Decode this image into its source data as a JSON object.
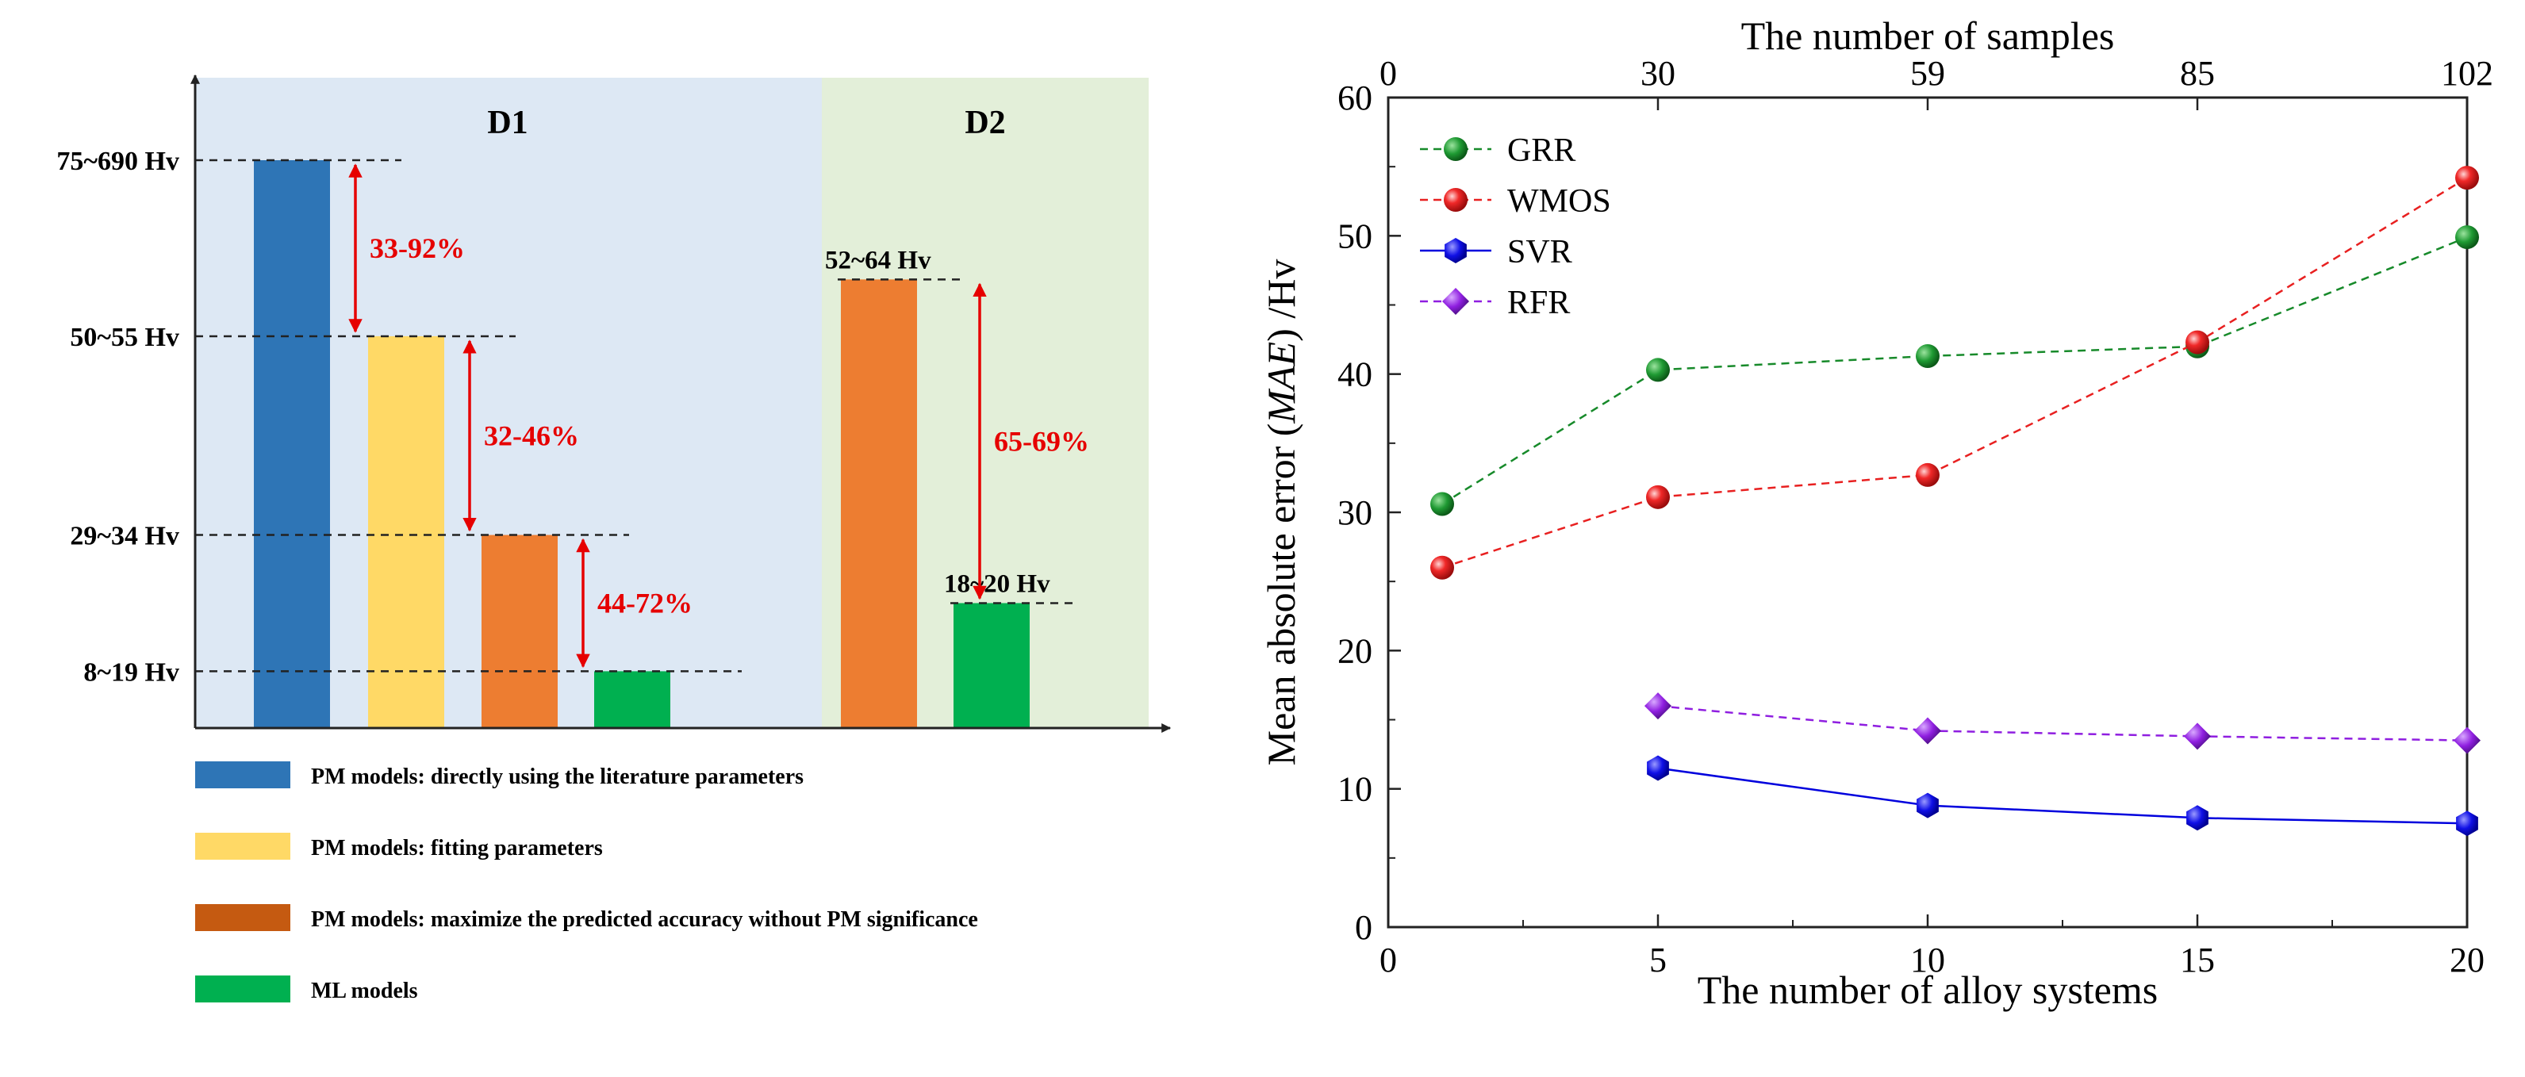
{
  "chart_data": [
    {
      "type": "bar",
      "title": "",
      "domains": [
        {
          "label": "D1",
          "color": "#dde8f4"
        },
        {
          "label": "D2",
          "color": "#e3efd9"
        }
      ],
      "categories": [
        "PM models: directly using the literature parameters",
        "PM models: fitting parameters",
        "PM models: maximize the predicted accuracy without PM significance",
        "ML models"
      ],
      "legend": [
        {
          "label": "PM models: directly using the literature parameters",
          "color": "#2e75b6"
        },
        {
          "label": "PM models: fitting parameters",
          "color": "#ffd966"
        },
        {
          "label": "PM models: maximize the predicted accuracy without PM significance",
          "color": "#c55a11"
        },
        {
          "label": "ML models",
          "color": "#00b050"
        }
      ],
      "bars": [
        {
          "domain": "D1",
          "category": 0,
          "value": 100,
          "color": "#2e75b6"
        },
        {
          "domain": "D1",
          "category": 1,
          "value": 69,
          "color": "#ffd966"
        },
        {
          "domain": "D1",
          "category": 2,
          "value": 34,
          "color": "#ed7d31"
        },
        {
          "domain": "D1",
          "category": 3,
          "value": 10,
          "color": "#00b050"
        },
        {
          "domain": "D2",
          "category": 2,
          "value": 79,
          "color": "#ed7d31"
        },
        {
          "domain": "D2",
          "category": 3,
          "value": 22,
          "color": "#00b050"
        }
      ],
      "level_labels": [
        {
          "domain": "D1",
          "text": "75~690 Hv",
          "value": 100
        },
        {
          "domain": "D1",
          "text": "50~55 Hv",
          "value": 69
        },
        {
          "domain": "D1",
          "text": "29~34 Hv",
          "value": 34
        },
        {
          "domain": "D1",
          "text": "8~19 Hv",
          "value": 10
        },
        {
          "domain": "D2",
          "text": "52~64 Hv",
          "value": 79
        },
        {
          "domain": "D2",
          "text": "18~20 Hv",
          "value": 22
        }
      ],
      "reductions": [
        {
          "domain": "D1",
          "text": "33-92%",
          "from": 100,
          "to": 69
        },
        {
          "domain": "D1",
          "text": "32-46%",
          "from": 69,
          "to": 34
        },
        {
          "domain": "D1",
          "text": "44-72%",
          "from": 34,
          "to": 10
        },
        {
          "domain": "D2",
          "text": "65-69%",
          "from": 79,
          "to": 22
        }
      ],
      "annotation_color": "#e60000"
    },
    {
      "type": "line",
      "xlabel": "The number of alloy systems",
      "x2label": "The number of samples",
      "ylabel_pre": "Mean absolute error (",
      "ylabel_italic": "MAE",
      "ylabel_post": ") /Hv",
      "xlim": [
        0,
        20
      ],
      "ylim": [
        0,
        60
      ],
      "xticks": [
        0,
        5,
        10,
        15,
        20
      ],
      "yticks": [
        0,
        10,
        20,
        30,
        40,
        50,
        60
      ],
      "x2ticks": [
        {
          "pos": 0,
          "label": "0"
        },
        {
          "pos": 5,
          "label": "30"
        },
        {
          "pos": 10,
          "label": "59"
        },
        {
          "pos": 15,
          "label": "85"
        },
        {
          "pos": 20,
          "label": "102"
        }
      ],
      "series": [
        {
          "name": "GRR",
          "color": "#178a2a",
          "dash": "10,7",
          "marker": "circle",
          "x": [
            1,
            5,
            10,
            15,
            20
          ],
          "y": [
            30.6,
            40.3,
            41.3,
            42.0,
            49.9
          ]
        },
        {
          "name": "WMOS",
          "color": "#e82020",
          "dash": "10,7",
          "marker": "circle",
          "x": [
            1,
            5,
            10,
            15,
            20
          ],
          "y": [
            26.0,
            31.1,
            32.7,
            42.3,
            54.2
          ]
        },
        {
          "name": "SVR",
          "color": "#0000dd",
          "dash": "",
          "marker": "hexagon",
          "x": [
            5,
            10,
            15,
            20
          ],
          "y": [
            11.5,
            8.8,
            7.9,
            7.5
          ]
        },
        {
          "name": "RFR",
          "color": "#8f1ee0",
          "dash": "10,7",
          "marker": "diamond",
          "x": [
            5,
            10,
            15,
            20
          ],
          "y": [
            16.0,
            14.2,
            13.8,
            13.5
          ]
        }
      ]
    }
  ]
}
